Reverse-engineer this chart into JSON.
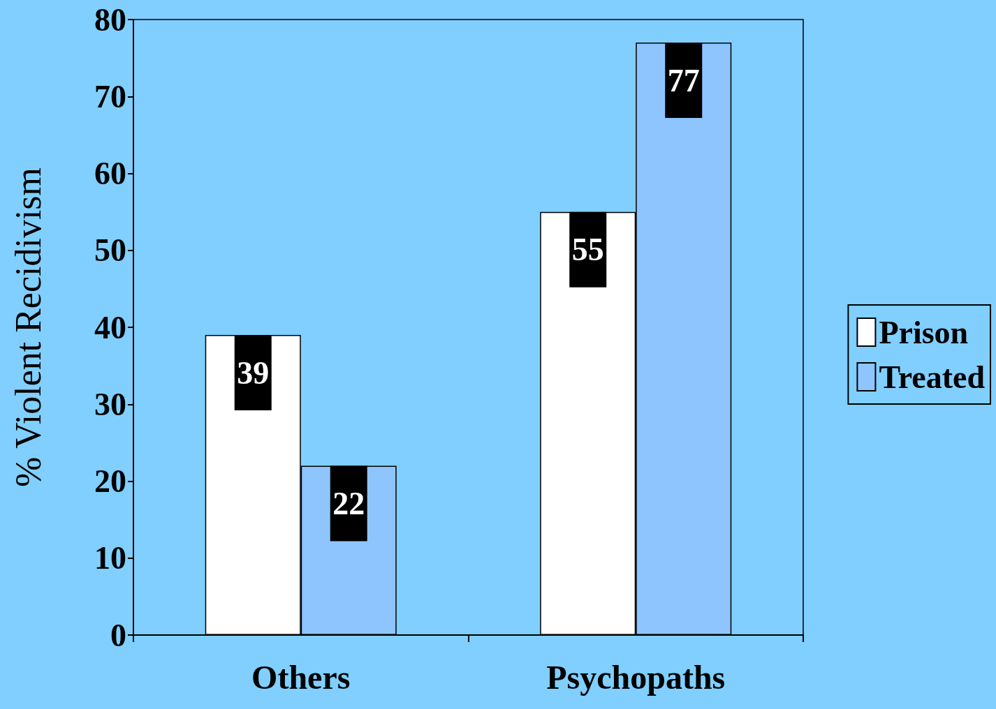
{
  "chart_data": {
    "type": "bar",
    "ylabel": "% Violent Recidivism",
    "categories": [
      "Others",
      "Psychopaths"
    ],
    "series": [
      {
        "name": "Prison",
        "color": "#ffffff",
        "values": [
          39,
          55
        ]
      },
      {
        "name": "Treated",
        "color": "#8fc5ff",
        "values": [
          22,
          77
        ]
      }
    ],
    "ylim": [
      0,
      80
    ],
    "yticks": [
      0,
      10,
      20,
      30,
      40,
      50,
      60,
      70,
      80
    ],
    "grid": false,
    "legend": "right",
    "data_labels": true
  }
}
